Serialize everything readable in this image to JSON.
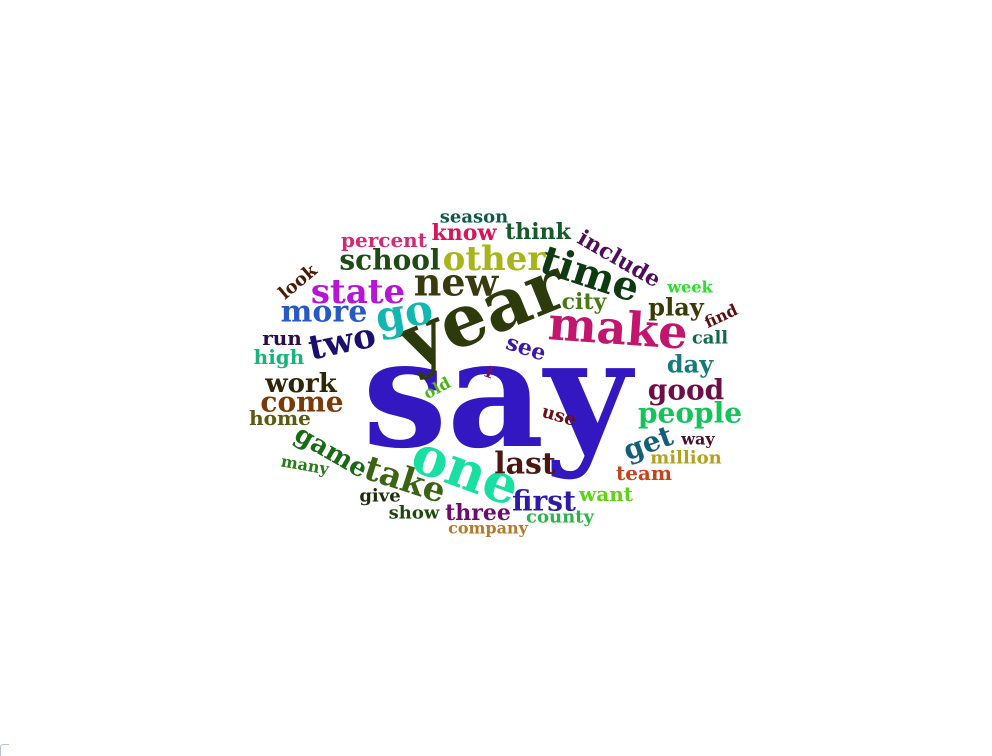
{
  "words": [
    {
      "text": "say",
      "color": "#3318c2"
    },
    {
      "text": "year",
      "color": "#2c3a0c"
    },
    {
      "text": "make",
      "color": "#c2156e"
    },
    {
      "text": "one",
      "color": "#17e0a2"
    },
    {
      "text": "time",
      "color": "#0e3a12"
    },
    {
      "text": "new",
      "color": "#3a3a10"
    },
    {
      "text": "other",
      "color": "#a8b41c"
    },
    {
      "text": "go",
      "color": "#12b8b0"
    },
    {
      "text": "state",
      "color": "#b616d4"
    },
    {
      "text": "more",
      "color": "#2858c8"
    },
    {
      "text": "two",
      "color": "#1a0e6e"
    },
    {
      "text": "school",
      "color": "#1e4a14"
    },
    {
      "text": "take",
      "color": "#3a6414"
    },
    {
      "text": "people",
      "color": "#14c45a"
    },
    {
      "text": "good",
      "color": "#6e0e46"
    },
    {
      "text": "game",
      "color": "#186a14"
    },
    {
      "text": "last",
      "color": "#4a1810"
    },
    {
      "text": "first",
      "color": "#2e1aa8"
    },
    {
      "text": "come",
      "color": "#7a3a08"
    },
    {
      "text": "work",
      "color": "#2e2608"
    },
    {
      "text": "include",
      "color": "#4e0e5a"
    },
    {
      "text": "think",
      "color": "#145a2a"
    },
    {
      "text": "know",
      "color": "#d8145a"
    },
    {
      "text": "season",
      "color": "#0e5a4a"
    },
    {
      "text": "percent",
      "color": "#d42a74"
    },
    {
      "text": "city",
      "color": "#4a7a18"
    },
    {
      "text": "play",
      "color": "#3a3a08"
    },
    {
      "text": "day",
      "color": "#147a7a"
    },
    {
      "text": "get",
      "color": "#145e7a"
    },
    {
      "text": "see",
      "color": "#3a18a8"
    },
    {
      "text": "look",
      "color": "#4a1a08"
    },
    {
      "text": "run",
      "color": "#2a0e4a"
    },
    {
      "text": "high",
      "color": "#18b47a"
    },
    {
      "text": "home",
      "color": "#5a5a10"
    },
    {
      "text": "many",
      "color": "#2a7a18"
    },
    {
      "text": "give",
      "color": "#1a2e0e"
    },
    {
      "text": "show",
      "color": "#1e4a0e"
    },
    {
      "text": "three",
      "color": "#6a0e6a"
    },
    {
      "text": "county",
      "color": "#2ab44a"
    },
    {
      "text": "company",
      "color": "#b47a2a"
    },
    {
      "text": "want",
      "color": "#5ad414"
    },
    {
      "text": "team",
      "color": "#c4441a"
    },
    {
      "text": "million",
      "color": "#b4a01a"
    },
    {
      "text": "way",
      "color": "#4a0e2a"
    },
    {
      "text": "use",
      "color": "#6a0e1a"
    },
    {
      "text": "old",
      "color": "#4ab414"
    },
    {
      "text": "1",
      "color": "#7a0e5a"
    },
    {
      "text": "week",
      "color": "#2ae02a"
    },
    {
      "text": "find",
      "color": "#5a0e0e"
    },
    {
      "text": "call",
      "color": "#0e6a4a"
    }
  ]
}
